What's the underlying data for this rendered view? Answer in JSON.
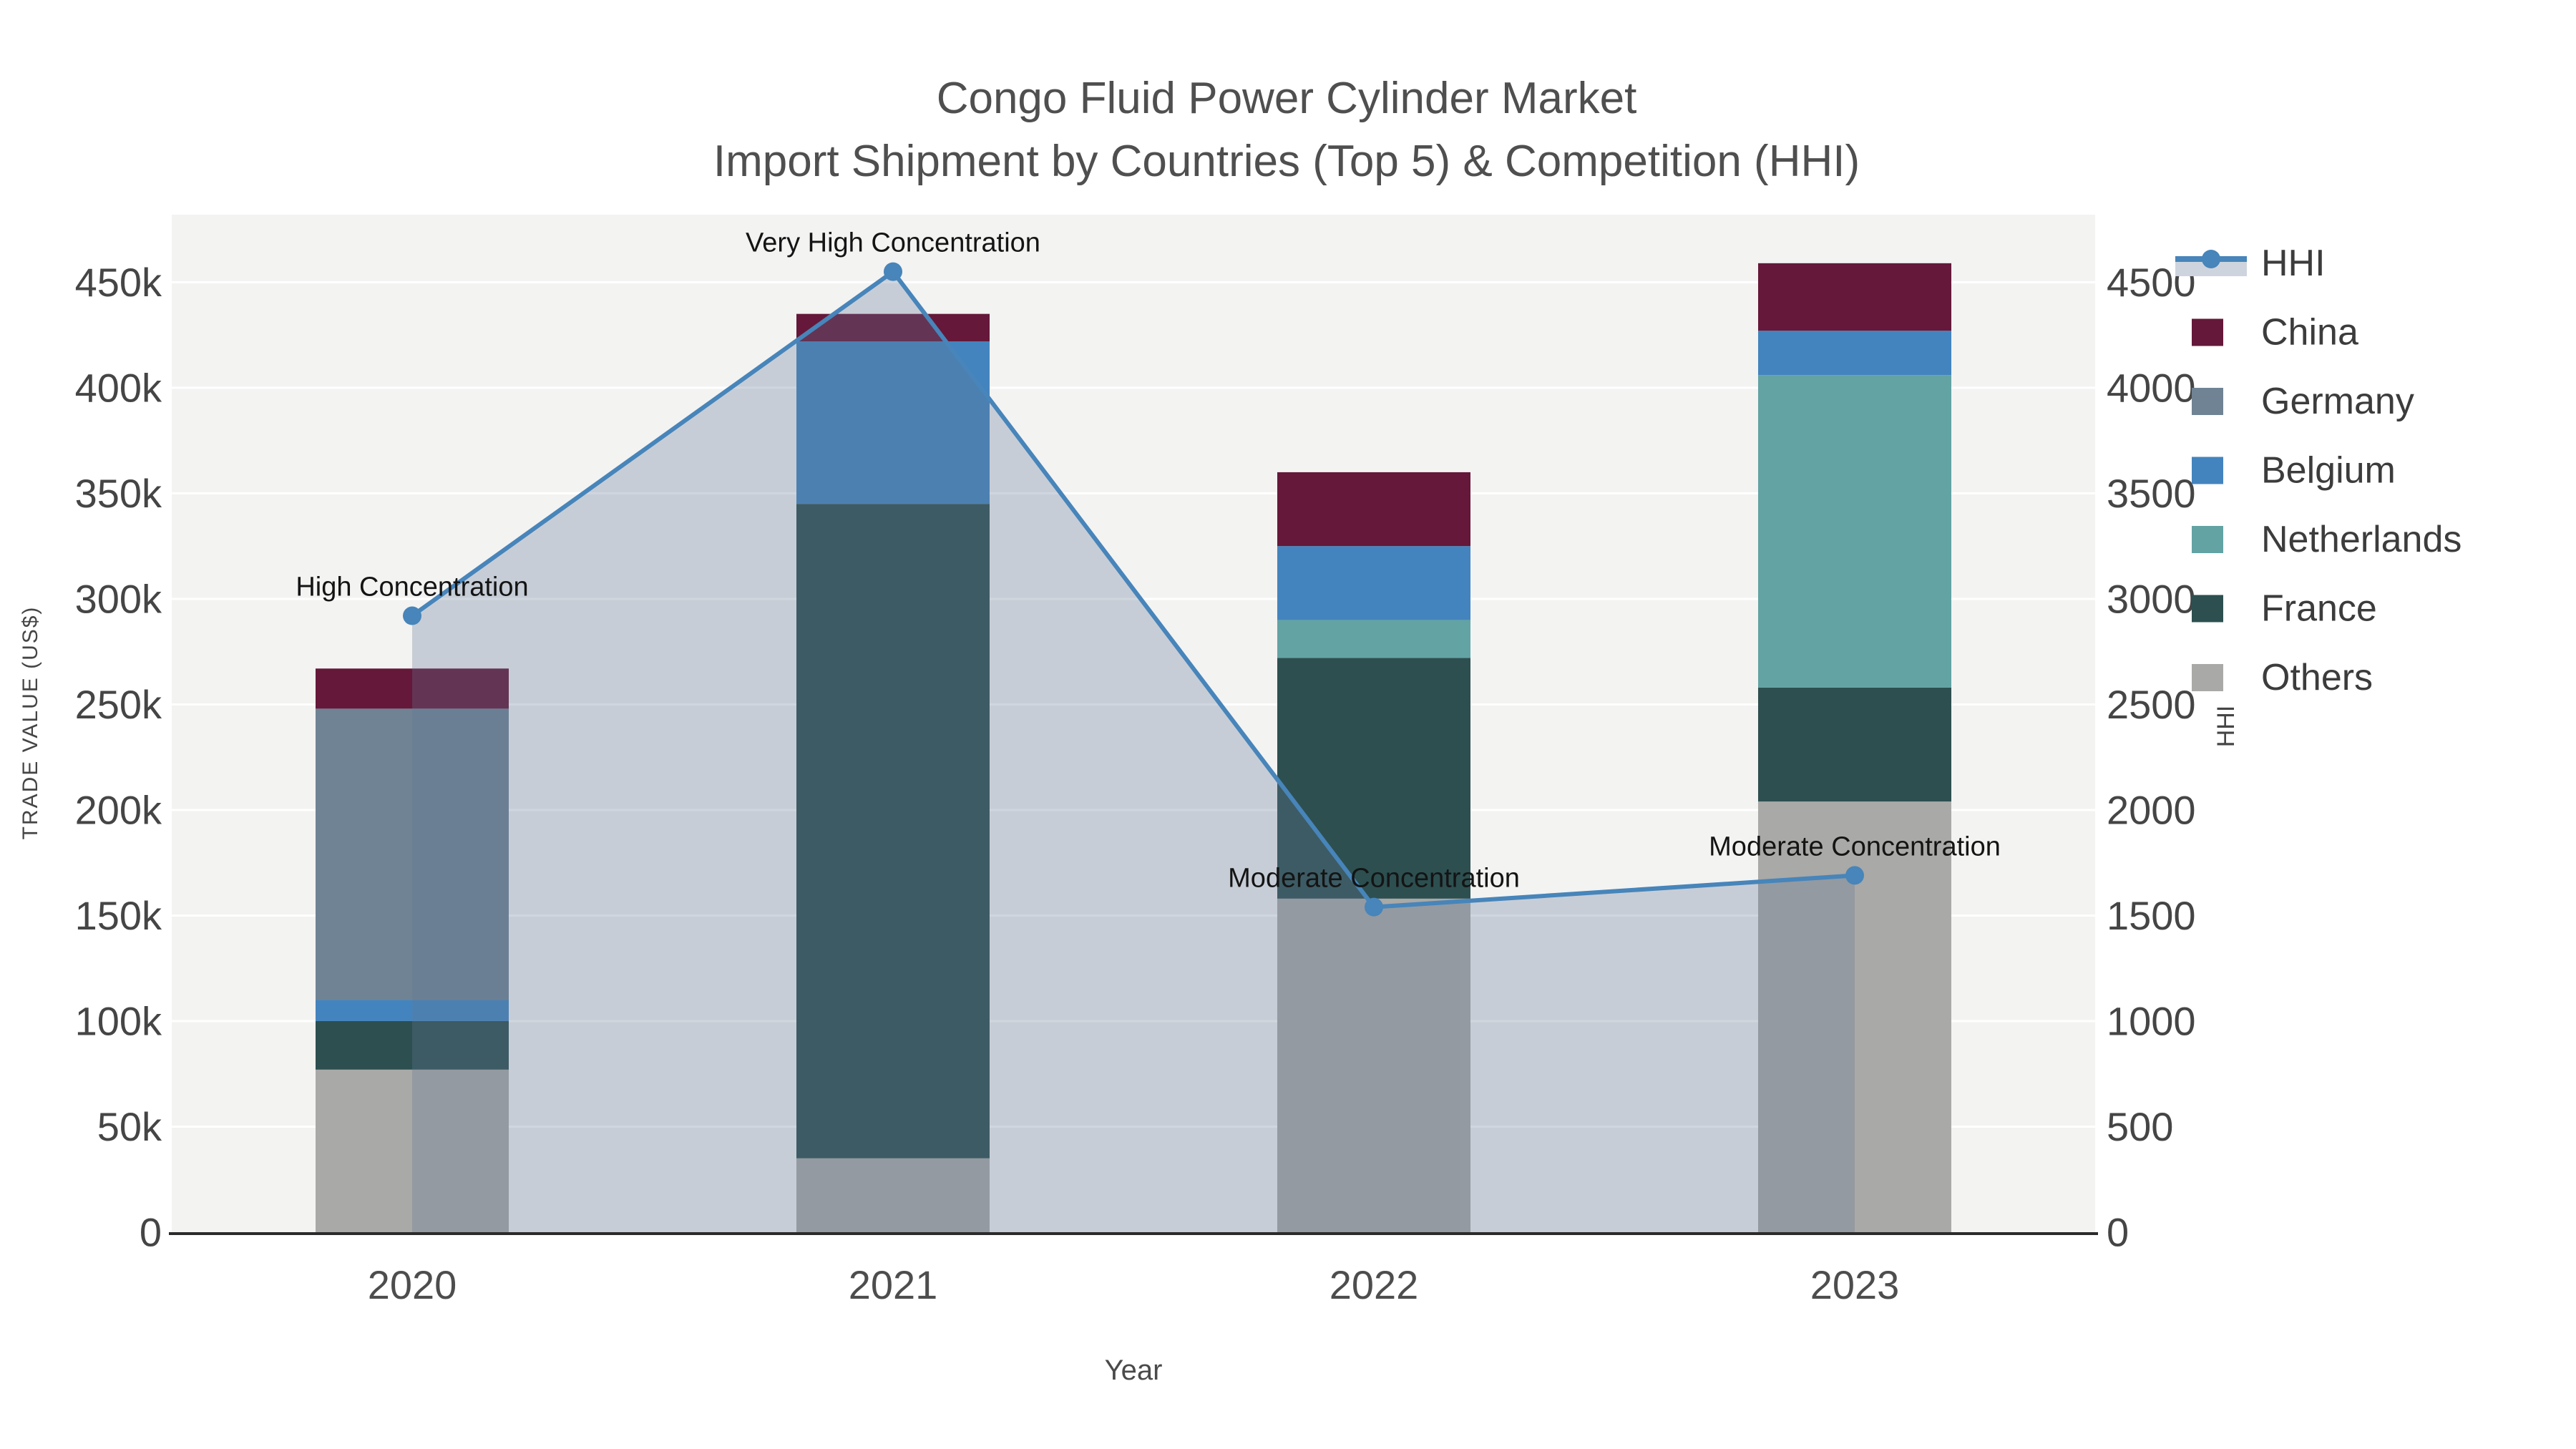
{
  "title": {
    "line1": "Congo Fluid Power Cylinder Market",
    "line2": "Import Shipment by Countries (Top 5) & Competition (HHI)"
  },
  "axes": {
    "x": {
      "title": "Year",
      "categories": [
        "2020",
        "2021",
        "2022",
        "2023"
      ]
    },
    "y_left": {
      "title": "TRADE VALUE (US$)",
      "tick_labels": [
        "0",
        "50k",
        "100k",
        "150k",
        "200k",
        "250k",
        "300k",
        "350k",
        "400k",
        "450k"
      ],
      "tick_values": [
        0,
        50000,
        100000,
        150000,
        200000,
        250000,
        300000,
        350000,
        400000,
        450000
      ]
    },
    "y_right": {
      "title": "HHI",
      "tick_labels": [
        "0",
        "500",
        "1000",
        "1500",
        "2000",
        "2500",
        "3000",
        "3500",
        "4000",
        "4500"
      ],
      "tick_values": [
        0,
        500,
        1000,
        1500,
        2000,
        2500,
        3000,
        3500,
        4000,
        4500
      ]
    }
  },
  "legend": [
    {
      "label": "HHI",
      "type": "line",
      "color": "#4785BA"
    },
    {
      "label": "China",
      "type": "box",
      "color": "#651839"
    },
    {
      "label": "Germany",
      "type": "box",
      "color": "#6F8394"
    },
    {
      "label": "Belgium",
      "type": "box",
      "color": "#4384BE"
    },
    {
      "label": "Netherlands",
      "type": "box",
      "color": "#63A3A4"
    },
    {
      "label": "France",
      "type": "box",
      "color": "#2D4F50"
    },
    {
      "label": "Others",
      "type": "box",
      "color": "#A9A9A7"
    }
  ],
  "style": {
    "plot_bg": "#F3F3F2",
    "grid_color": "#FFFFFF",
    "axis_line_color": "#2B2B2B",
    "line_color": "#4785BA",
    "area_fill": "rgba(100,120,150,0.30)",
    "area_swatch": "#CED4DD",
    "title_color": "#4F4F4F",
    "tick_color": "#454545",
    "x_tick_color": "#4D4D4D",
    "annotation_color": "#141414",
    "legend_text_color": "#3C3C3C"
  },
  "chart_data": {
    "type": "bar",
    "subtype": "stacked bars with secondary-axis line (combo)",
    "categories": [
      "2020",
      "2021",
      "2022",
      "2023"
    ],
    "bar_value_unit": "US$ trade value",
    "stack_order_bottom_to_top": [
      "Others",
      "France",
      "Netherlands",
      "Belgium",
      "Germany",
      "China"
    ],
    "series": [
      {
        "name": "China",
        "values": [
          19000,
          13000,
          35000,
          32000
        ]
      },
      {
        "name": "Germany",
        "values": [
          138000,
          0,
          0,
          0
        ]
      },
      {
        "name": "Belgium",
        "values": [
          10000,
          77000,
          35000,
          21000
        ]
      },
      {
        "name": "Netherlands",
        "values": [
          0,
          0,
          18000,
          148000
        ]
      },
      {
        "name": "France",
        "values": [
          23000,
          310000,
          114000,
          54000
        ]
      },
      {
        "name": "Others",
        "values": [
          77000,
          35000,
          158000,
          204000
        ]
      }
    ],
    "bar_totals": [
      267000,
      435000,
      360000,
      459000
    ],
    "line_series": {
      "name": "HHI",
      "axis": "right",
      "values": [
        2920,
        4550,
        1540,
        1690
      ],
      "has_area_fill": true
    },
    "annotations": [
      "High Concentration",
      "Very High Concentration",
      "Moderate Concentration",
      "Moderate Concentration"
    ],
    "title": "Congo Fluid Power Cylinder Market — Import Shipment by Countries (Top 5) & Competition (HHI)",
    "xlabel": "Year",
    "ylabel_left": "TRADE VALUE (US$)",
    "ylabel_right": "HHI",
    "ylim_left": [
      0,
      482000
    ],
    "ylim_right": [
      0,
      4820
    ],
    "grid": "horizontal white gridlines every 50k",
    "legend_position": "right"
  }
}
